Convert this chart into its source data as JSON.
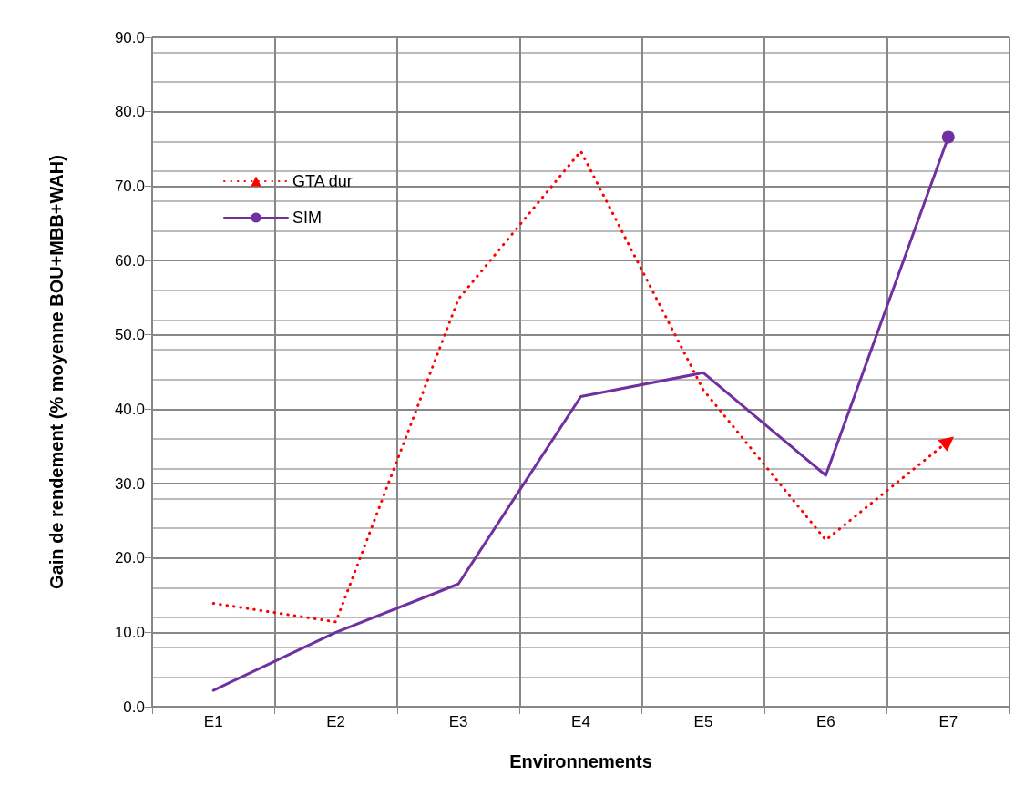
{
  "chart_data": {
    "type": "line",
    "xlabel": "Environnements",
    "ylabel": "Gain de rendement (% moyenne BOU+MBB+WAH)",
    "categories": [
      "E1",
      "E2",
      "E3",
      "E4",
      "E5",
      "E6",
      "E7"
    ],
    "series": [
      {
        "name": "GTA dur",
        "color": "#ff0000",
        "line_style": "dotted",
        "values": [
          13.9,
          11.4,
          54.8,
          74.7,
          42.6,
          22.4,
          35.7
        ]
      },
      {
        "name": "SIM",
        "color": "#7030a0",
        "line_style": "solid",
        "values": [
          2.2,
          10.0,
          16.5,
          41.7,
          44.9,
          31.1,
          76.6
        ]
      }
    ],
    "ylim": [
      0,
      90
    ],
    "yticks": [
      {
        "value": 0,
        "label": "0.0"
      },
      {
        "value": 10,
        "label": "10.0"
      },
      {
        "value": 20,
        "label": "20.0"
      },
      {
        "value": 30,
        "label": "30.0"
      },
      {
        "value": 40,
        "label": "40.0"
      },
      {
        "value": 50,
        "label": "50.0"
      },
      {
        "value": 60,
        "label": "60.0"
      },
      {
        "value": 70,
        "label": "70.0"
      },
      {
        "value": 80,
        "label": "80.0"
      },
      {
        "value": 90,
        "label": "90.0"
      }
    ],
    "grid": true,
    "legend": "top left"
  }
}
